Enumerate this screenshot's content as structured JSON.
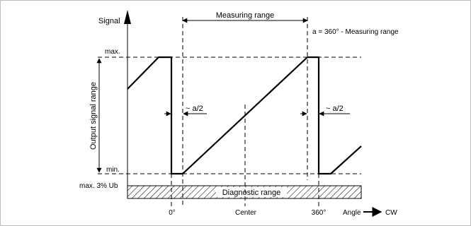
{
  "labels": {
    "signal": "Signal",
    "measuring_range": "Measuring range",
    "formula": "a = 360° - Measuring range",
    "max": "max.",
    "min": "min.",
    "max3": "max. 3% Ub",
    "output_signal_range": "Output signal range",
    "a_half_left": "~ a/2",
    "a_half_right": "~ a/2",
    "diagnostic_range": "Diagnostic range",
    "deg0": "0°",
    "center": "Center",
    "deg360": "360°",
    "angle": "Angle",
    "cw": "CW"
  }
}
